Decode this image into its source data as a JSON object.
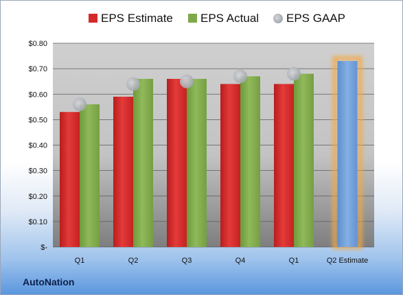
{
  "brand": "AutoNation",
  "chart_data": {
    "type": "bar",
    "categories": [
      "Q1",
      "Q2",
      "Q3",
      "Q4",
      "Q1",
      "Q2 Estimate"
    ],
    "series": [
      {
        "name": "EPS Estimate",
        "color": "#d42a2a",
        "values": [
          0.53,
          0.59,
          0.66,
          0.64,
          0.64,
          null
        ]
      },
      {
        "name": "EPS Actual",
        "color": "#7fa84a",
        "values": [
          0.56,
          0.66,
          0.66,
          0.67,
          0.68,
          null
        ]
      },
      {
        "name": "EPS GAAP",
        "color": "#b8bcc4",
        "values": [
          0.56,
          0.64,
          0.65,
          0.67,
          0.68,
          null
        ]
      }
    ],
    "projection": {
      "category": "Q2 Estimate",
      "value": 0.73,
      "color": "#6c9bd6",
      "glow": "#f4a844"
    },
    "yticks": [
      "$-",
      "$0.10",
      "$0.20",
      "$0.30",
      "$0.40",
      "$0.50",
      "$0.60",
      "$0.70",
      "$0.80"
    ],
    "ylim": [
      0,
      0.8
    ],
    "grid": true,
    "legend_position": "top"
  }
}
